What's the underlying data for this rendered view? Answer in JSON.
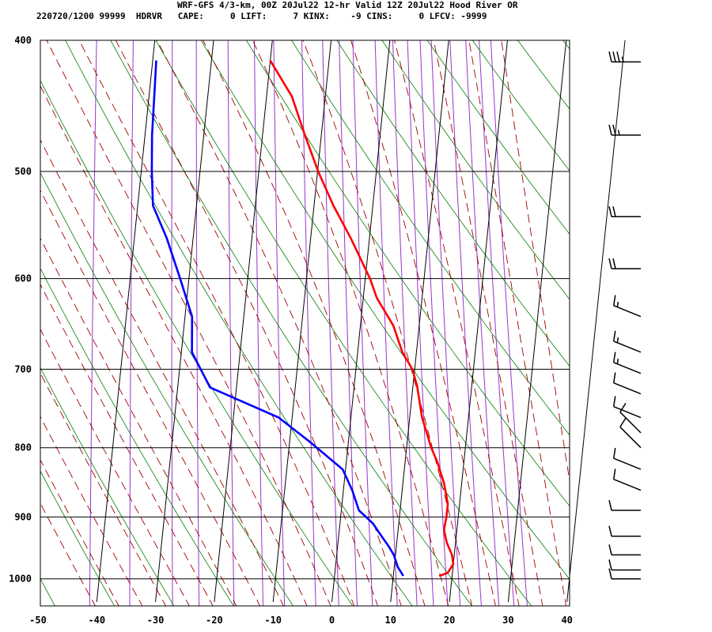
{
  "header": {
    "title": "WRF-GFS 4/3-km, 00Z 20Jul22 12-hr Valid 12Z 20Jul22 Hood River OR",
    "subtitle": "220720/1200 99999  HDRVR   CAPE:     0 LIFT:     7 KINX:    -9 CINS:     0 LFCV: -9999"
  },
  "colors": {
    "temperature": "#ff0000",
    "dewpoint": "#0000ff",
    "isotherm": "#000000",
    "dry_adiabat": "#008000",
    "moist_adiabat": "#a00000",
    "mixing_ratio": "#9933cc",
    "wind_barb": "#000000"
  },
  "chart_data": {
    "type": "line",
    "plot_kind": "skew-T log-P sounding",
    "x_axis": {
      "label": "",
      "range": [
        -50,
        40
      ],
      "ticks": [
        "-50",
        "-40",
        "-30",
        "-20",
        "-10",
        "0",
        "10",
        "20",
        "30",
        "40"
      ]
    },
    "y_axis": {
      "label": "",
      "scale": "log",
      "range": [
        1040,
        400
      ],
      "ticks": [
        "400",
        "500",
        "600",
        "700",
        "800",
        "900",
        "1000"
      ]
    },
    "grid": true,
    "series": [
      {
        "key": "temperature",
        "color": "#ff0000",
        "points": [
          [
            995,
            17.8
          ],
          [
            990,
            19.2
          ],
          [
            975,
            20
          ],
          [
            960,
            19.6
          ],
          [
            940,
            18.5
          ],
          [
            920,
            17.8
          ],
          [
            900,
            18
          ],
          [
            880,
            18
          ],
          [
            850,
            17
          ],
          [
            820,
            15.5
          ],
          [
            800,
            14.2
          ],
          [
            760,
            12.1
          ],
          [
            720,
            10.7
          ],
          [
            700,
            9.6
          ],
          [
            680,
            7.6
          ],
          [
            650,
            5.6
          ],
          [
            620,
            2.3
          ],
          [
            600,
            0.8
          ],
          [
            560,
            -3.2
          ],
          [
            530,
            -6.7
          ],
          [
            500,
            -9.9
          ],
          [
            470,
            -12.8
          ],
          [
            440,
            -15.7
          ],
          [
            414,
            -20
          ]
        ]
      },
      {
        "key": "dewpoint",
        "color": "#0000ff",
        "points": [
          [
            995,
            11.7
          ],
          [
            980,
            10.6
          ],
          [
            960,
            9.7
          ],
          [
            945,
            8.6
          ],
          [
            930,
            7.3
          ],
          [
            910,
            5.6
          ],
          [
            890,
            3
          ],
          [
            860,
            1.5
          ],
          [
            830,
            -0.5
          ],
          [
            793,
            -6.4
          ],
          [
            760,
            -12.3
          ],
          [
            722,
            -24.5
          ],
          [
            680,
            -28.2
          ],
          [
            640,
            -28.8
          ],
          [
            600,
            -31.5
          ],
          [
            560,
            -34.5
          ],
          [
            530,
            -37.4
          ],
          [
            500,
            -38.2
          ],
          [
            470,
            -38.8
          ],
          [
            440,
            -39.1
          ],
          [
            414,
            -39.4
          ]
        ]
      }
    ],
    "wind_profile": [
      {
        "pressure": 415,
        "speed_kt": 35,
        "direction": "W"
      },
      {
        "pressure": 470,
        "speed_kt": 25,
        "direction": "W"
      },
      {
        "pressure": 540,
        "speed_kt": 20,
        "direction": "W"
      },
      {
        "pressure": 590,
        "speed_kt": 20,
        "direction": "W"
      },
      {
        "pressure": 640,
        "speed_kt": 15,
        "direction": "WNW"
      },
      {
        "pressure": 680,
        "speed_kt": 15,
        "direction": "WNW"
      },
      {
        "pressure": 705,
        "speed_kt": 15,
        "direction": "WNW"
      },
      {
        "pressure": 730,
        "speed_kt": 10,
        "direction": "WNW"
      },
      {
        "pressure": 760,
        "speed_kt": 10,
        "direction": "WNW"
      },
      {
        "pressure": 780,
        "speed_kt": 10,
        "direction": "NW"
      },
      {
        "pressure": 800,
        "speed_kt": 10,
        "direction": "NW"
      },
      {
        "pressure": 830,
        "speed_kt": 10,
        "direction": "WNW"
      },
      {
        "pressure": 860,
        "speed_kt": 10,
        "direction": "WNW"
      },
      {
        "pressure": 890,
        "speed_kt": 10,
        "direction": "W"
      },
      {
        "pressure": 930,
        "speed_kt": 10,
        "direction": "W"
      },
      {
        "pressure": 960,
        "speed_kt": 10,
        "direction": "W"
      },
      {
        "pressure": 985,
        "speed_kt": 10,
        "direction": "W"
      },
      {
        "pressure": 1000,
        "speed_kt": 10,
        "direction": "W"
      }
    ]
  }
}
